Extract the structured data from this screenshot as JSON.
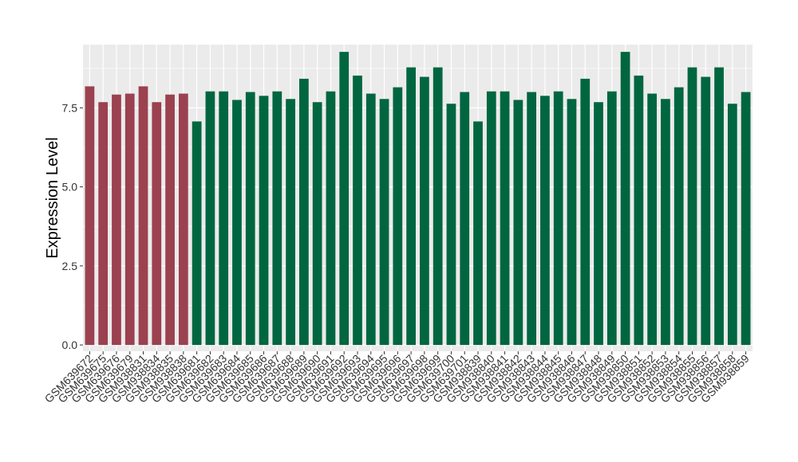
{
  "chart_data": {
    "type": "bar",
    "title": "",
    "xlabel": "",
    "ylabel": "Expression Level",
    "ylim": [
      -0.2,
      9.5
    ],
    "yticks": [
      0.0,
      2.5,
      5.0,
      7.5
    ],
    "ytick_labels": [
      "0.0",
      "2.5",
      "5.0",
      "7.5"
    ],
    "grid": true,
    "legend": "none",
    "colors": {
      "group_a": "#9b4150",
      "group_b": "#006640",
      "panel_bg": "#ebebeb",
      "grid": "#ffffff"
    },
    "categories": [
      "GSM639672",
      "GSM639675",
      "GSM639676",
      "GSM639679",
      "GSM938831",
      "GSM938834",
      "GSM938835",
      "GSM938838",
      "GSM639681",
      "GSM639682",
      "GSM639683",
      "GSM639684",
      "GSM639685",
      "GSM639686",
      "GSM639687",
      "GSM639688",
      "GSM639689",
      "GSM639690",
      "GSM639691",
      "GSM639692",
      "GSM639693",
      "GSM639694",
      "GSM639695",
      "GSM639696",
      "GSM639697",
      "GSM639698",
      "GSM639699",
      "GSM639700",
      "GSM639701",
      "GSM938839",
      "GSM938840",
      "GSM938841",
      "GSM938842",
      "GSM938843",
      "GSM938844",
      "GSM938845",
      "GSM938846",
      "GSM938847",
      "GSM938848",
      "GSM938849",
      "GSM938850",
      "GSM938851",
      "GSM938852",
      "GSM938853",
      "GSM938854",
      "GSM938855",
      "GSM938856",
      "GSM938857",
      "GSM938858",
      "GSM938859"
    ],
    "values": [
      8.18,
      7.68,
      7.92,
      7.95,
      8.18,
      7.68,
      7.92,
      7.95,
      7.07,
      8.02,
      8.02,
      7.75,
      8.0,
      7.88,
      8.02,
      7.78,
      8.42,
      7.68,
      8.02,
      9.27,
      8.52,
      7.95,
      7.78,
      8.15,
      8.78,
      8.48,
      8.78,
      7.63,
      8.0,
      7.07,
      8.02,
      8.02,
      7.75,
      8.0,
      7.88,
      8.02,
      7.78,
      8.42,
      7.68,
      8.02,
      9.27,
      8.52,
      7.95,
      7.78,
      8.15,
      8.78,
      8.48,
      8.78,
      7.63,
      8.0
    ],
    "groups": [
      "a",
      "a",
      "a",
      "a",
      "a",
      "a",
      "a",
      "a",
      "b",
      "b",
      "b",
      "b",
      "b",
      "b",
      "b",
      "b",
      "b",
      "b",
      "b",
      "b",
      "b",
      "b",
      "b",
      "b",
      "b",
      "b",
      "b",
      "b",
      "b",
      "b",
      "b",
      "b",
      "b",
      "b",
      "b",
      "b",
      "b",
      "b",
      "b",
      "b",
      "b",
      "b",
      "b",
      "b",
      "b",
      "b",
      "b",
      "b",
      "b",
      "b"
    ]
  }
}
